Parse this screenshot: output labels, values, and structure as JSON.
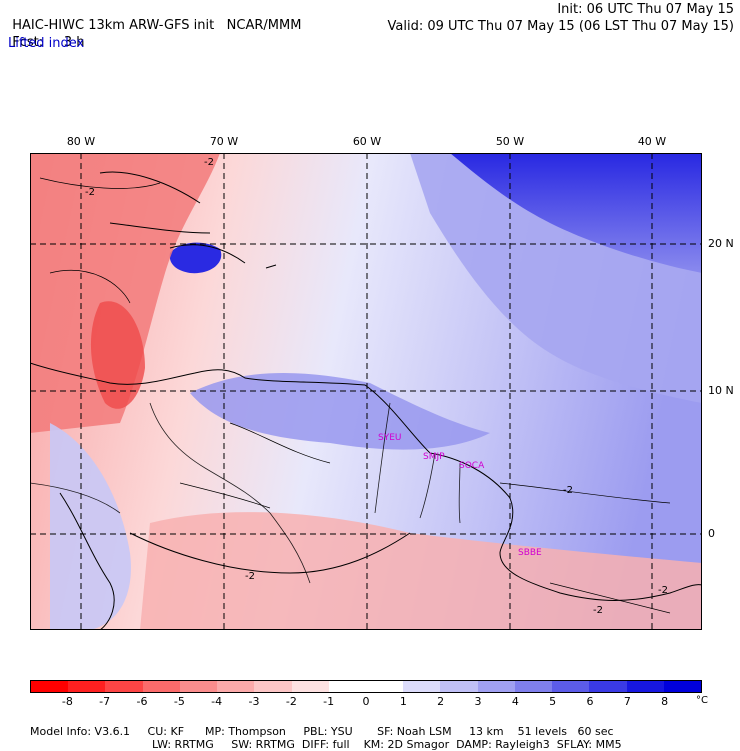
{
  "header": {
    "model_title": "HAIC-HIWC 13km ARW-GFS init",
    "org": "NCAR/MMM",
    "fcst_label": "Fcst:",
    "fcst_value": "3 h",
    "init": "Init: 06 UTC Thu 07 May 15",
    "valid": "Valid: 09 UTC Thu 07 May 15 (06 LST Thu 07 May 15)"
  },
  "field_name": "Lifted index",
  "map": {
    "lon_labels": [
      "80 W",
      "70 W",
      "60 W",
      "50 W",
      "40 W"
    ],
    "lat_labels": [
      "20 N",
      "10 N",
      "0"
    ],
    "places": [
      "SYEU",
      "SMJP",
      "SOCA",
      "SBBE"
    ],
    "contour_labels": [
      "-2",
      "-2",
      "-2",
      "-2",
      "-2",
      "-2"
    ]
  },
  "colorbar": {
    "unit": "°C",
    "labels": [
      "-8",
      "-7",
      "-6",
      "-5",
      "-4",
      "-3",
      "-2",
      "-1",
      "0",
      "1",
      "2",
      "3",
      "4",
      "5",
      "6",
      "7",
      "8"
    ],
    "colors": [
      "#ff0000",
      "#fe2020",
      "#fd4545",
      "#fb6b6b",
      "#fa8d8d",
      "#fbaaaa",
      "#fcc6c6",
      "#fde1e1",
      "#ffffff",
      "#ffffff",
      "#dcdcfb",
      "#c0c0f6",
      "#a0a0f1",
      "#7f7fec",
      "#5c5ce8",
      "#3a3ae4",
      "#1717e0",
      "#0000dc"
    ]
  },
  "model_info": {
    "line1": [
      "Model Info: V3.6.1",
      "CU: KF",
      "MP: Thompson",
      "PBL: YSU",
      "SF: Noah LSM",
      "13 km",
      "51 levels",
      "60 sec"
    ],
    "line2": [
      "LW: RRTMG",
      "SW: RRTMG",
      "DIFF: full",
      "KM: 2D Smagor",
      "DAMP: Rayleigh3",
      "SFLAY: MM5"
    ]
  }
}
